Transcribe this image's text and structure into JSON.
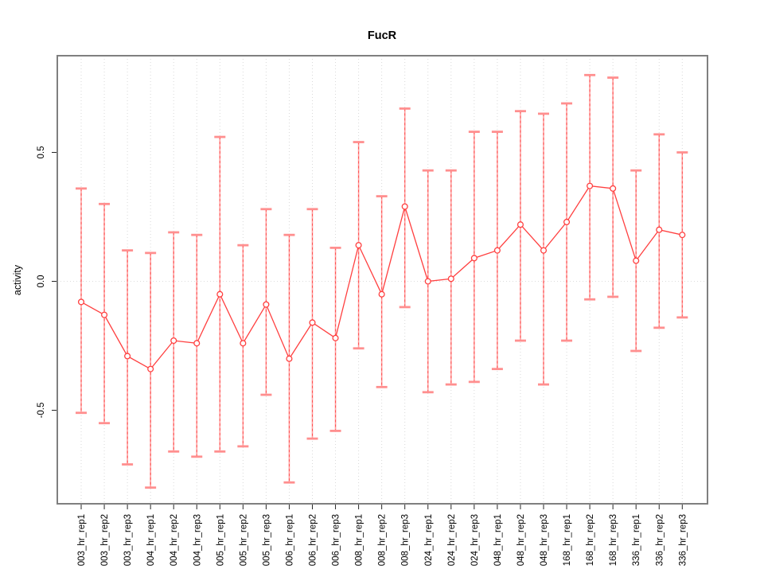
{
  "chart_data": {
    "type": "line",
    "title": "FucR",
    "xlabel": "",
    "ylabel": "activity",
    "legend": "none",
    "grid": "vertical dotted gridline at every category; dotted horizontal line at y=0",
    "point_style": "open circles with vertical error bars (capped)",
    "ylim": [
      -0.87,
      0.88
    ],
    "yticks": [
      0.5,
      0.0,
      -0.5
    ],
    "ytick_labels": [
      "0.5",
      "0.0",
      "-0.5"
    ],
    "categories": [
      "003_hr_rep1",
      "003_hr_rep2",
      "003_hr_rep3",
      "004_hr_rep1",
      "004_hr_rep2",
      "004_hr_rep3",
      "005_hr_rep1",
      "005_hr_rep2",
      "005_hr_rep3",
      "006_hr_rep1",
      "006_hr_rep2",
      "006_hr_rep3",
      "008_hr_rep1",
      "008_hr_rep2",
      "008_hr_rep3",
      "024_hr_rep1",
      "024_hr_rep2",
      "024_hr_rep3",
      "048_hr_rep1",
      "048_hr_rep2",
      "048_hr_rep3",
      "168_hr_rep1",
      "168_hr_rep2",
      "168_hr_rep3",
      "336_hr_rep1",
      "336_hr_rep2",
      "336_hr_rep3"
    ],
    "series": [
      {
        "name": "activity_mean",
        "values": [
          -0.08,
          -0.13,
          -0.29,
          -0.34,
          -0.23,
          -0.24,
          -0.05,
          -0.24,
          -0.09,
          -0.3,
          -0.16,
          -0.22,
          0.14,
          -0.05,
          0.29,
          0.0,
          0.01,
          0.09,
          0.12,
          0.22,
          0.12,
          0.23,
          0.37,
          0.36,
          0.08,
          0.2,
          0.18
        ]
      },
      {
        "name": "error_upper",
        "values": [
          0.36,
          0.3,
          0.12,
          0.11,
          0.19,
          0.18,
          0.56,
          0.14,
          0.28,
          0.18,
          0.28,
          0.13,
          0.54,
          0.33,
          0.67,
          0.43,
          0.43,
          0.58,
          0.58,
          0.66,
          0.65,
          0.69,
          0.8,
          0.79,
          0.43,
          0.57,
          0.5
        ]
      },
      {
        "name": "error_lower",
        "values": [
          -0.51,
          -0.55,
          -0.71,
          -0.8,
          -0.66,
          -0.68,
          -0.66,
          -0.64,
          -0.44,
          -0.78,
          -0.61,
          -0.58,
          -0.26,
          -0.41,
          -0.1,
          -0.43,
          -0.4,
          -0.39,
          -0.34,
          -0.23,
          -0.4,
          -0.23,
          -0.07,
          -0.06,
          -0.27,
          -0.18,
          -0.14
        ]
      }
    ],
    "colors": {
      "point_line": "#ff4040",
      "error_stem": "#ff9e9e",
      "error_stem_dash": "#ff4d4d",
      "error_cap": "#ff8f8f",
      "gridline": "#d9d9d9",
      "zero_line": "#dcdcdc",
      "axis_box": "#7f7f7f",
      "tick": "#262626",
      "text": "#000000",
      "background": "#ffffff"
    }
  }
}
